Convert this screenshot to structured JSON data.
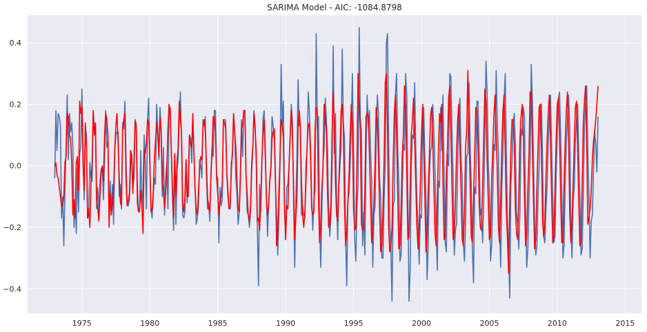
{
  "chart_data": {
    "type": "line",
    "title": "SARIMA Model - AIC: -1084.8798",
    "xlabel": "",
    "ylabel": "",
    "xlim": [
      1971.0,
      2016.2
    ],
    "ylim": [
      -0.48,
      0.49
    ],
    "x_ticks": [
      1975,
      1980,
      1985,
      1990,
      1995,
      2000,
      2005,
      2010,
      2015
    ],
    "x_tick_labels": [
      "1975",
      "1980",
      "1985",
      "1990",
      "1995",
      "2000",
      "2005",
      "2010",
      "2015"
    ],
    "y_ticks": [
      -0.4,
      -0.2,
      0.0,
      0.2,
      0.4
    ],
    "y_tick_labels": [
      "−0.4",
      "−0.2",
      "0.0",
      "0.2",
      "0.4"
    ],
    "grid": true,
    "background": "#eaeaf2",
    "series": [
      {
        "role": "observed",
        "color": "#4c72b0",
        "start": 1973.0,
        "step": 0.083333,
        "values": [
          -0.04,
          0.18,
          0.05,
          0.17,
          0.16,
          0.13,
          -0.17,
          -0.1,
          -0.26,
          -0.08,
          0.06,
          0.23,
          0.02,
          0.17,
          0.11,
          0.14,
          0.06,
          -0.2,
          -0.12,
          -0.22,
          -0.01,
          -0.15,
          0.04,
          0.06,
          0.25,
          0.05,
          -0.11,
          0.13,
          0.1,
          -0.17,
          -0.15,
          0.01,
          -0.04,
          -0.05,
          0.18,
          0.12,
          0.1,
          -0.14,
          -0.07,
          -0.15,
          -0.05,
          -0.01,
          -0.01,
          -0.11,
          0.02,
          0.18,
          0.06,
          0.08,
          -0.15,
          -0.05,
          -0.15,
          -0.06,
          -0.19,
          0.05,
          0.1,
          0.11,
          0.11,
          -0.1,
          -0.06,
          -0.14,
          0.14,
          0.12,
          0.21,
          0.02,
          -0.13,
          -0.13,
          -0.11,
          0.0,
          0.04,
          -0.07,
          -0.04,
          0.14,
          0.14,
          -0.06,
          -0.15,
          -0.15,
          0.05,
          -0.14,
          -0.07,
          0.1,
          0.01,
          -0.14,
          0.15,
          0.22,
          0.02,
          -0.14,
          -0.17,
          -0.1,
          -0.04,
          -0.06,
          0.2,
          0.12,
          0.02,
          0.19,
          0.1,
          -0.1,
          0.06,
          -0.16,
          -0.05,
          0.01,
          -0.14,
          0.17,
          0.19,
          0.04,
          -0.1,
          -0.21,
          0.04,
          -0.19,
          -0.02,
          0.02,
          0.15,
          0.24,
          0.09,
          -0.16,
          -0.17,
          -0.15,
          0.02,
          -0.12,
          -0.04,
          0.1,
          0.09,
          0.01,
          0.16,
          0.04,
          -0.07,
          -0.19,
          -0.17,
          -0.13,
          0.02,
          0.0,
          -0.04,
          0.15,
          0.13,
          0.16,
          -0.03,
          -0.14,
          -0.12,
          -0.18,
          -0.02,
          0.06,
          0.03,
          0.18,
          0.18,
          -0.03,
          -0.04,
          -0.25,
          -0.07,
          -0.13,
          -0.11,
          0.15,
          0.15,
          0.15,
          -0.03,
          -0.1,
          -0.14,
          -0.14,
          0.01,
          0.03,
          0.15,
          0.11,
          -0.04,
          -0.09,
          -0.19,
          -0.15,
          -0.02,
          0.15,
          0.03,
          0.18,
          0.18,
          -0.02,
          -0.15,
          -0.16,
          -0.2,
          -0.15,
          -0.02,
          0.05,
          0.18,
          0.13,
          0.01,
          -0.2,
          -0.39,
          -0.06,
          -0.15,
          -0.0,
          0.15,
          0.18,
          0.06,
          -0.1,
          -0.23,
          -0.12,
          -0.04,
          -0.0,
          0.16,
          0.13,
          0.09,
          -0.07,
          -0.16,
          -0.29,
          -0.17,
          -0.0,
          0.33,
          0.13,
          0.21,
          -0.11,
          -0.24,
          -0.07,
          -0.06,
          0.0,
          0.1,
          0.2,
          0.14,
          -0.1,
          -0.33,
          -0.11,
          0.02,
          0.28,
          0.13,
          0.13,
          -0.16,
          -0.13,
          -0.16,
          -0.17,
          0.01,
          0.05,
          0.24,
          0.17,
          0.07,
          -0.11,
          -0.21,
          -0.11,
          -0.08,
          0.43,
          0.12,
          0.16,
          -0.18,
          -0.33,
          -0.14,
          0.01,
          0.06,
          0.22,
          0.15,
          0.05,
          -0.14,
          -0.23,
          -0.17,
          -0.02,
          0.39,
          0.04,
          0.17,
          -0.1,
          -0.24,
          -0.07,
          0.0,
          0.06,
          0.38,
          0.14,
          0.09,
          -0.23,
          -0.39,
          -0.11,
          -0.09,
          0.0,
          0.13,
          0.3,
          0.07,
          -0.24,
          -0.31,
          -0.14,
          -0.06,
          0.45,
          0.15,
          0.11,
          -0.26,
          -0.15,
          -0.29,
          0.03,
          0.23,
          0.13,
          0.18,
          0.05,
          -0.05,
          -0.33,
          -0.16,
          -0.13,
          0.09,
          0.23,
          0.17,
          -0.04,
          -0.1,
          -0.3,
          -0.3,
          -0.11,
          0.01,
          0.4,
          0.43,
          0.09,
          -0.18,
          -0.27,
          -0.44,
          -0.13,
          -0.11,
          0.23,
          0.3,
          0.06,
          -0.06,
          -0.31,
          -0.29,
          -0.1,
          0.07,
          0.05,
          0.3,
          0.23,
          -0.11,
          -0.44,
          -0.34,
          0.0,
          0.1,
          0.09,
          0.27,
          0.05,
          -0.12,
          -0.19,
          -0.32,
          -0.16,
          -0.17,
          0.12,
          0.19,
          0.02,
          -0.1,
          -0.37,
          -0.25,
          -0.03,
          0.05,
          0.06,
          0.2,
          0.11,
          -0.02,
          -0.21,
          -0.34,
          -0.05,
          -0.07,
          0.19,
          0.05,
          0.23,
          -0.03,
          -0.25,
          -0.28,
          0.04,
          0.0,
          0.3,
          0.29,
          0.1,
          -0.04,
          -0.29,
          -0.21,
          -0.19,
          0.0,
          0.17,
          0.22,
          0.02,
          -0.04,
          -0.25,
          -0.31,
          -0.18,
          0.03,
          0.04,
          0.27,
          0.07,
          -0.06,
          -0.27,
          -0.38,
          -0.07,
          -0.09,
          0.21,
          0.21,
          0.04,
          -0.16,
          -0.14,
          -0.25,
          -0.12,
          0.08,
          0.34,
          0.24,
          0.02,
          -0.08,
          -0.31,
          -0.26,
          -0.1,
          0.07,
          0.05,
          0.31,
          0.14,
          0.04,
          -0.2,
          -0.33,
          -0.07,
          0.04,
          0.21,
          0.3,
          0.05,
          -0.18,
          -0.27,
          -0.43,
          -0.06,
          0.01,
          0.14,
          0.17,
          0.06,
          -0.15,
          -0.19,
          -0.27,
          -0.15,
          0.12,
          0.1,
          0.19,
          0.16,
          -0.14,
          -0.33,
          -0.27,
          -0.11,
          0.02,
          0.33,
          0.21,
          0.02,
          -0.19,
          -0.29,
          -0.26,
          -0.1,
          0.0,
          0.2,
          0.2,
          0.02,
          -0.23,
          -0.25,
          -0.14,
          -0.07,
          0.07,
          0.16,
          0.23,
          0.06,
          -0.1,
          -0.25,
          -0.23,
          -0.04,
          0.1,
          0.22,
          0.24,
          0.1,
          -0.08,
          -0.3,
          -0.26,
          -0.05,
          0.07,
          0.15,
          0.23,
          0.12,
          -0.2,
          -0.3,
          -0.12,
          -0.07,
          0.08,
          0.15,
          0.2,
          0.03,
          -0.1,
          -0.29,
          -0.27,
          -0.09,
          0.13,
          0.2,
          0.26,
          0.04,
          -0.1,
          -0.3,
          -0.18,
          -0.16,
          -0.02,
          0.11,
          0.07,
          -0.02,
          0.16
        ]
      },
      {
        "role": "fitted",
        "color": "#ff0000",
        "start": 1973.0,
        "step": 0.083333,
        "values": [
          0.0,
          0.01,
          -0.03,
          -0.04,
          -0.07,
          -0.1,
          -0.13,
          -0.13,
          -0.1,
          0.01,
          0.03,
          0.17,
          0.16,
          0.1,
          0.09,
          0.01,
          -0.16,
          -0.11,
          -0.17,
          0.01,
          0.03,
          -0.08,
          0.21,
          0.17,
          0.19,
          0.0,
          -0.08,
          0.14,
          0.06,
          -0.17,
          -0.14,
          -0.2,
          -0.06,
          0.01,
          0.18,
          0.1,
          0.14,
          -0.11,
          -0.14,
          -0.18,
          -0.1,
          -0.02,
          0.0,
          -0.05,
          0.1,
          0.17,
          0.15,
          0.1,
          -0.2,
          -0.09,
          -0.16,
          -0.12,
          -0.08,
          0.05,
          0.13,
          0.17,
          0.07,
          -0.04,
          -0.12,
          -0.13,
          0.12,
          0.15,
          0.17,
          -0.05,
          -0.13,
          -0.11,
          -0.09,
          0.05,
          0.03,
          -0.09,
          0.02,
          0.15,
          0.12,
          -0.12,
          -0.15,
          -0.14,
          -0.08,
          -0.13,
          -0.22,
          0.05,
          0.04,
          0.08,
          0.15,
          0.14,
          0.01,
          -0.15,
          -0.14,
          -0.09,
          0.02,
          0.08,
          0.14,
          0.1,
          0.03,
          0.16,
          0.12,
          -0.05,
          -0.08,
          -0.14,
          -0.09,
          -0.01,
          0.12,
          0.2,
          0.18,
          0.05,
          -0.07,
          -0.17,
          0.04,
          -0.1,
          0.01,
          0.06,
          0.21,
          0.15,
          0.11,
          -0.12,
          -0.15,
          -0.1,
          0.02,
          -0.1,
          -0.1,
          0.1,
          0.07,
          0.06,
          0.17,
          0.04,
          -0.08,
          -0.14,
          -0.16,
          -0.08,
          -0.01,
          0.03,
          0.02,
          0.13,
          0.15,
          0.11,
          0.01,
          -0.1,
          -0.14,
          -0.15,
          -0.04,
          0.05,
          0.16,
          0.16,
          0.11,
          -0.04,
          -0.09,
          -0.16,
          -0.11,
          -0.1,
          -0.06,
          0.15,
          0.14,
          0.12,
          -0.02,
          -0.08,
          -0.14,
          -0.13,
          -0.02,
          0.05,
          0.17,
          0.11,
          0.06,
          -0.05,
          -0.14,
          -0.15,
          -0.05,
          0.12,
          0.13,
          0.18,
          0.18,
          -0.03,
          -0.09,
          -0.16,
          -0.18,
          -0.13,
          0.01,
          0.06,
          0.17,
          0.12,
          0.05,
          -0.18,
          -0.17,
          -0.21,
          -0.12,
          0.02,
          0.1,
          0.15,
          0.03,
          -0.1,
          -0.16,
          -0.13,
          -0.05,
          -0.01,
          0.09,
          0.11,
          0.12,
          -0.04,
          -0.26,
          -0.22,
          -0.09,
          0.02,
          0.15,
          0.13,
          0.09,
          -0.14,
          -0.24,
          -0.13,
          -0.14,
          0.0,
          0.09,
          0.18,
          0.1,
          -0.06,
          -0.24,
          -0.17,
          -0.1,
          0.13,
          0.18,
          0.13,
          -0.05,
          -0.16,
          -0.2,
          -0.15,
          -0.05,
          0.07,
          0.13,
          0.14,
          0.03,
          -0.14,
          -0.16,
          -0.15,
          0.12,
          0.19,
          0.17,
          -0.1,
          -0.25,
          -0.2,
          -0.07,
          -0.01,
          0.2,
          0.16,
          0.11,
          -0.09,
          -0.2,
          -0.19,
          -0.12,
          0.1,
          0.24,
          0.14,
          -0.05,
          -0.16,
          -0.18,
          -0.05,
          0.05,
          0.18,
          0.2,
          0.13,
          -0.13,
          -0.26,
          -0.21,
          -0.12,
          -0.03,
          0.1,
          0.2,
          0.13,
          -0.14,
          -0.21,
          -0.2,
          0.01,
          0.3,
          0.2,
          0.12,
          -0.19,
          -0.21,
          -0.2,
          -0.08,
          0.16,
          0.17,
          0.16,
          0.04,
          -0.1,
          -0.25,
          -0.21,
          -0.12,
          0.01,
          0.19,
          0.15,
          0.02,
          -0.14,
          -0.28,
          -0.26,
          -0.14,
          0.02,
          0.27,
          0.3,
          0.12,
          -0.2,
          -0.28,
          -0.26,
          -0.2,
          0.01,
          0.17,
          0.23,
          0.11,
          -0.09,
          -0.27,
          -0.26,
          -0.14,
          0.03,
          0.1,
          0.26,
          0.2,
          -0.02,
          -0.24,
          -0.23,
          -0.08,
          0.1,
          0.15,
          0.22,
          0.08,
          -0.06,
          -0.2,
          -0.27,
          -0.2,
          -0.06,
          0.1,
          0.2,
          0.06,
          -0.1,
          -0.28,
          -0.23,
          -0.08,
          0.03,
          0.16,
          0.19,
          0.08,
          -0.07,
          -0.22,
          -0.26,
          -0.11,
          0.05,
          0.17,
          0.14,
          0.2,
          -0.05,
          -0.24,
          -0.23,
          -0.02,
          0.06,
          0.22,
          0.26,
          0.1,
          -0.07,
          -0.24,
          -0.22,
          -0.12,
          0.04,
          0.15,
          0.2,
          0.06,
          -0.08,
          -0.24,
          -0.26,
          -0.15,
          0.06,
          0.12,
          0.31,
          0.1,
          -0.05,
          -0.23,
          -0.25,
          -0.11,
          0.03,
          0.19,
          0.18,
          0.06,
          -0.12,
          -0.2,
          -0.21,
          -0.07,
          0.09,
          0.25,
          0.21,
          0.02,
          -0.11,
          -0.24,
          -0.23,
          -0.05,
          0.05,
          0.16,
          0.23,
          0.11,
          -0.02,
          -0.2,
          -0.25,
          -0.11,
          0.06,
          0.18,
          0.23,
          0.05,
          -0.15,
          -0.24,
          -0.35,
          -0.12,
          0.05,
          0.15,
          0.15,
          0.07,
          -0.14,
          -0.22,
          -0.24,
          -0.1,
          0.09,
          0.16,
          0.2,
          0.11,
          -0.1,
          -0.26,
          -0.23,
          -0.08,
          0.04,
          0.24,
          0.24,
          0.06,
          -0.12,
          -0.27,
          -0.24,
          -0.07,
          0.06,
          0.19,
          0.2,
          0.05,
          -0.18,
          -0.23,
          -0.19,
          -0.04,
          0.08,
          0.17,
          0.23,
          0.08,
          -0.1,
          -0.25,
          -0.23,
          -0.07,
          0.08,
          0.2,
          0.22,
          0.1,
          -0.1,
          -0.25,
          -0.25,
          -0.06,
          0.08,
          0.18,
          0.24,
          0.09,
          -0.15,
          -0.25,
          -0.18,
          -0.06,
          0.07,
          0.19,
          0.21,
          0.06,
          -0.12,
          -0.26,
          -0.25,
          -0.06,
          0.14,
          0.21,
          0.26,
          0.07,
          -0.19,
          -0.17,
          -0.14,
          -0.08,
          0.02,
          0.08,
          0.11,
          0.15,
          0.2,
          0.26
        ]
      }
    ]
  }
}
